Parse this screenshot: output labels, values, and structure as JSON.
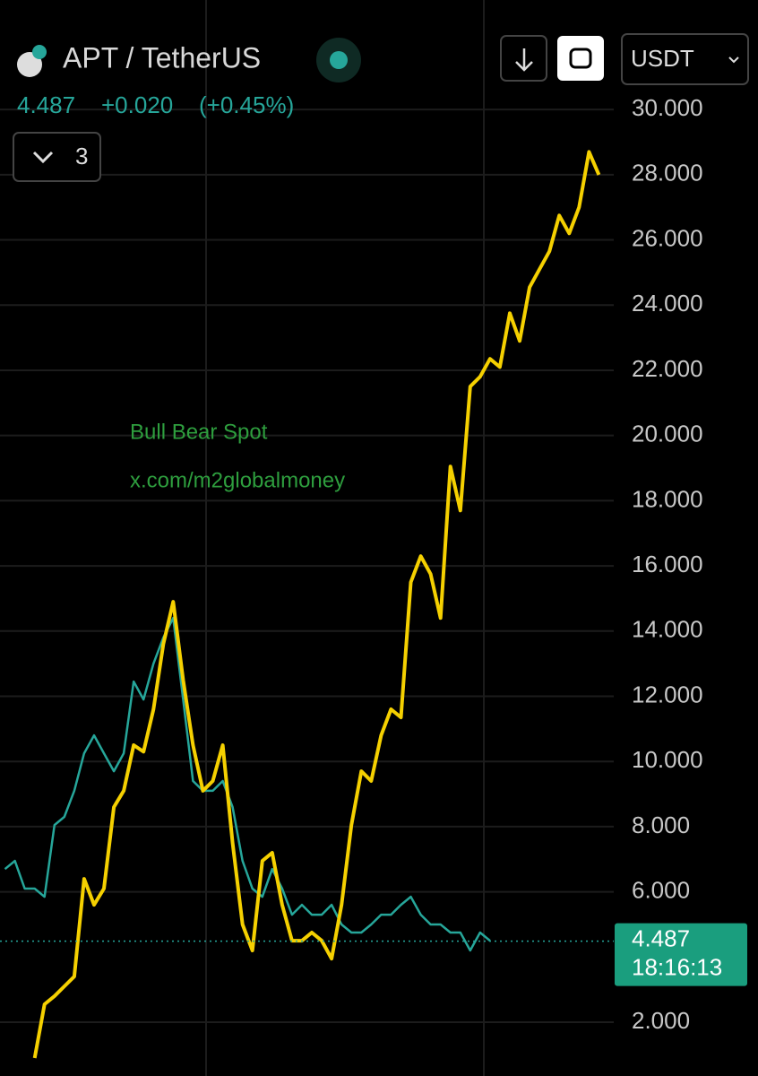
{
  "header": {
    "symbol": "APT / TetherUS",
    "price": "4.487",
    "change": "+0.020",
    "change_pct": "(+0.45%)",
    "indicator_count": "3",
    "currency": "USDT"
  },
  "chart_data": {
    "type": "line",
    "annotations": [
      "Bull Bear Spot",
      "x.com/m2globalmoney"
    ],
    "last_price": 4.487,
    "countdown": "18:16:13",
    "categories": [
      null,
      null,
      null,
      null,
      null,
      null,
      null,
      null,
      null,
      null,
      null,
      null,
      null,
      null,
      null,
      null,
      null,
      null,
      null,
      null,
      null,
      null,
      null,
      null,
      null,
      null,
      null,
      null,
      null,
      null,
      null,
      null,
      null,
      null,
      null,
      null,
      null,
      null,
      null,
      null,
      null,
      null,
      null,
      null,
      null,
      null,
      null,
      null,
      null,
      null,
      null,
      null,
      null,
      null,
      null,
      null,
      null,
      null,
      null,
      null,
      null,
      null
    ],
    "series": [
      {
        "color": "#26a69a",
        "values": [
          6.7,
          6.95,
          6.1,
          6.1,
          5.85,
          8.05,
          8.3,
          9.1,
          10.25,
          10.8,
          10.25,
          9.7,
          10.25,
          12.45,
          11.9,
          13.0,
          13.8,
          14.4,
          11.9,
          9.4,
          9.1,
          9.1,
          9.4,
          8.6,
          6.95,
          6.1,
          5.85,
          6.7,
          6.1,
          5.3,
          5.6,
          5.3,
          5.3,
          5.6,
          5.0,
          4.75,
          4.75,
          5.0,
          5.3,
          5.3,
          5.6,
          5.85,
          5.3,
          5.0,
          5.0,
          4.75,
          4.75,
          4.2,
          4.75,
          4.5,
          null,
          null,
          null,
          null,
          null,
          null,
          null,
          null,
          null,
          null,
          null,
          null
        ]
      },
      {
        "color": "#f5d000",
        "values": [
          null,
          null,
          null,
          0.9,
          2.55,
          2.8,
          3.1,
          3.4,
          6.4,
          5.6,
          6.1,
          8.6,
          9.1,
          10.5,
          10.3,
          11.6,
          13.6,
          14.9,
          12.5,
          10.5,
          9.1,
          9.4,
          10.5,
          7.5,
          5.0,
          4.2,
          6.95,
          7.2,
          5.6,
          4.5,
          4.5,
          4.75,
          4.5,
          3.95,
          5.6,
          8.05,
          9.7,
          9.4,
          10.8,
          11.6,
          11.35,
          15.5,
          16.3,
          15.75,
          14.4,
          19.05,
          17.7,
          21.5,
          21.8,
          22.35,
          22.1,
          23.75,
          22.9,
          24.55,
          25.1,
          25.65,
          26.75,
          26.2,
          27.0,
          28.7,
          28.0,
          null
        ]
      }
    ],
    "ylim": [
      0.35,
      33.36
    ],
    "yticks": [
      {
        "value": 2,
        "label": "2.000"
      },
      {
        "value": 6,
        "label": "6.000"
      },
      {
        "value": 8,
        "label": "8.000"
      },
      {
        "value": 10,
        "label": "10.000"
      },
      {
        "value": 12,
        "label": "12.000"
      },
      {
        "value": 14,
        "label": "14.000"
      },
      {
        "value": 16,
        "label": "16.000"
      },
      {
        "value": 18,
        "label": "18.000"
      },
      {
        "value": 20,
        "label": "20.000"
      },
      {
        "value": 22,
        "label": "22.000"
      },
      {
        "value": 24,
        "label": "24.000"
      },
      {
        "value": 26,
        "label": "26.000"
      },
      {
        "value": 28,
        "label": "28.000"
      },
      {
        "value": 30,
        "label": "30.000"
      }
    ],
    "grid": true
  }
}
